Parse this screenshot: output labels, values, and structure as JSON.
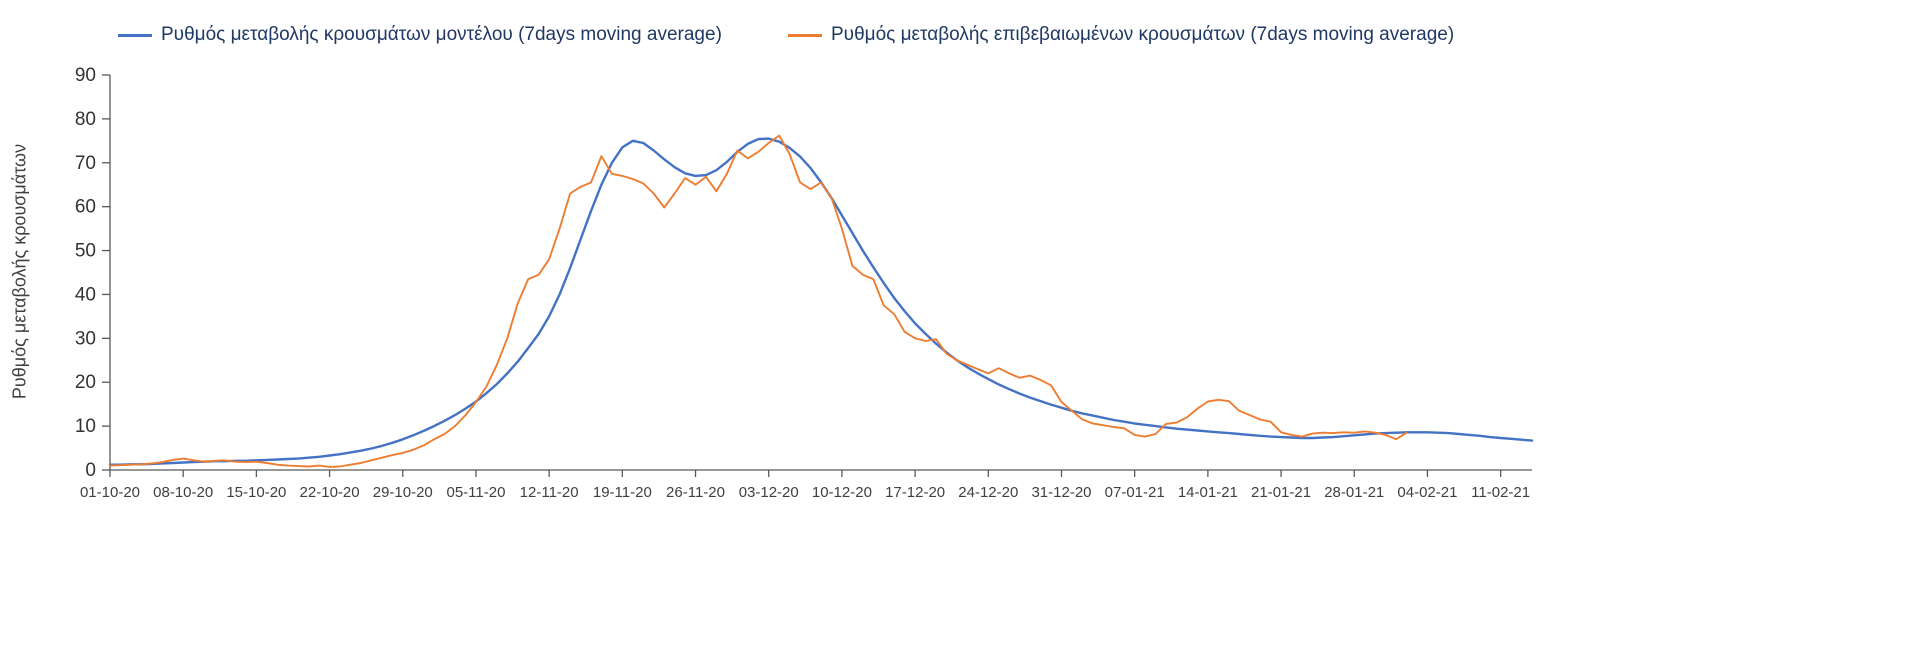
{
  "page": {
    "background": "#ffffff"
  },
  "colors": {
    "model_line": "#4472c4",
    "confirmed_line": "#ed7d31",
    "axis": "#595959",
    "tick_text": "#333333",
    "legend_text": "#1f3864"
  },
  "chart_data": {
    "type": "line",
    "title": "",
    "y_axis_title": "Ρυθμός μεταβολής κρουσμάτων",
    "ylim": [
      0,
      90
    ],
    "y_ticks": [
      0,
      10,
      20,
      30,
      40,
      50,
      60,
      70,
      80,
      90
    ],
    "grid": false,
    "legend_position": "top",
    "x_unit": "daily values starting 01-10-20; axis ticks every 7 days",
    "x_tick_labels": [
      "01-10-20",
      "08-10-20",
      "15-10-20",
      "22-10-20",
      "29-10-20",
      "05-11-20",
      "12-11-20",
      "19-11-20",
      "26-11-20",
      "03-12-20",
      "10-12-20",
      "17-12-20",
      "24-12-20",
      "31-12-20",
      "07-01-21",
      "14-01-21",
      "21-01-21",
      "28-01-21",
      "04-02-21",
      "11-02-21"
    ],
    "x_tick_day_step": 7,
    "series": [
      {
        "name": "Ρυθμός μεταβολής κρουσμάτων μοντέλου (7days moving average)",
        "color": "#4472c4",
        "start_date": "01-10-20",
        "values": [
          1.2,
          1.2,
          1.3,
          1.3,
          1.4,
          1.5,
          1.6,
          1.7,
          1.8,
          1.9,
          2.0,
          2.0,
          2.1,
          2.1,
          2.2,
          2.3,
          2.4,
          2.5,
          2.6,
          2.8,
          3.0,
          3.3,
          3.6,
          4.0,
          4.4,
          4.9,
          5.5,
          6.2,
          7.0,
          7.9,
          8.9,
          10.0,
          11.2,
          12.5,
          14.0,
          15.6,
          17.5,
          19.6,
          22.0,
          24.7,
          27.8,
          31.0,
          35.0,
          40.0,
          46.0,
          52.5,
          59.0,
          65.0,
          70.0,
          73.5,
          75.0,
          74.5,
          72.8,
          70.8,
          69.0,
          67.6,
          67.0,
          67.2,
          68.3,
          70.2,
          72.5,
          74.3,
          75.4,
          75.5,
          74.8,
          73.4,
          71.4,
          68.8,
          65.6,
          62.0,
          58.0,
          54.0,
          50.0,
          46.2,
          42.6,
          39.2,
          36.2,
          33.4,
          31.0,
          28.8,
          26.8,
          25.0,
          23.4,
          22.0,
          20.7,
          19.5,
          18.4,
          17.4,
          16.5,
          15.7,
          14.9,
          14.2,
          13.5,
          12.9,
          12.4,
          11.9,
          11.4,
          11.0,
          10.6,
          10.3,
          10.0,
          9.7,
          9.4,
          9.2,
          9.0,
          8.8,
          8.6,
          8.4,
          8.2,
          8.0,
          7.8,
          7.6,
          7.5,
          7.4,
          7.3,
          7.3,
          7.4,
          7.5,
          7.7,
          7.9,
          8.1,
          8.3,
          8.4,
          8.5,
          8.6,
          8.6,
          8.6,
          8.5,
          8.4,
          8.2,
          8.0,
          7.8,
          7.5,
          7.3,
          7.1,
          6.9,
          6.7
        ]
      },
      {
        "name": "Ρυθμός μεταβολής επιβεβαιωμένων κρουσμάτων (7days moving average)",
        "color": "#ed7d31",
        "start_date": "01-10-20",
        "values": [
          1.0,
          1.1,
          1.2,
          1.3,
          1.5,
          1.8,
          2.3,
          2.6,
          2.2,
          1.9,
          2.1,
          2.2,
          1.9,
          1.8,
          1.9,
          1.6,
          1.2,
          1.0,
          0.9,
          0.8,
          1.0,
          0.7,
          0.8,
          1.2,
          1.6,
          2.2,
          2.8,
          3.4,
          3.9,
          4.6,
          5.6,
          7.0,
          8.2,
          10.0,
          12.5,
          15.5,
          19.0,
          24.0,
          30.0,
          38.0,
          43.5,
          44.5,
          48.0,
          55.0,
          63.0,
          64.5,
          65.5,
          71.5,
          67.5,
          67.0,
          66.3,
          65.3,
          63.0,
          59.8,
          63.0,
          66.5,
          65.0,
          66.8,
          63.5,
          67.5,
          72.8,
          71.0,
          72.5,
          74.5,
          76.2,
          72.0,
          65.5,
          64.0,
          65.5,
          62.0,
          55.0,
          46.5,
          44.5,
          43.5,
          37.5,
          35.5,
          31.5,
          30.0,
          29.4,
          29.8,
          26.5,
          25.0,
          24.0,
          23.0,
          22.0,
          23.2,
          22.0,
          21.0,
          21.5,
          20.5,
          19.3,
          15.5,
          13.5,
          11.5,
          10.6,
          10.2,
          9.8,
          9.5,
          8.0,
          7.6,
          8.2,
          10.5,
          10.8,
          12.0,
          14.0,
          15.6,
          16.0,
          15.7,
          13.5,
          12.5,
          11.5,
          11.0,
          8.6,
          8.0,
          7.6,
          8.3,
          8.5,
          8.4,
          8.6,
          8.5,
          8.8,
          8.5,
          8.0,
          7.0,
          8.5
        ]
      }
    ]
  }
}
